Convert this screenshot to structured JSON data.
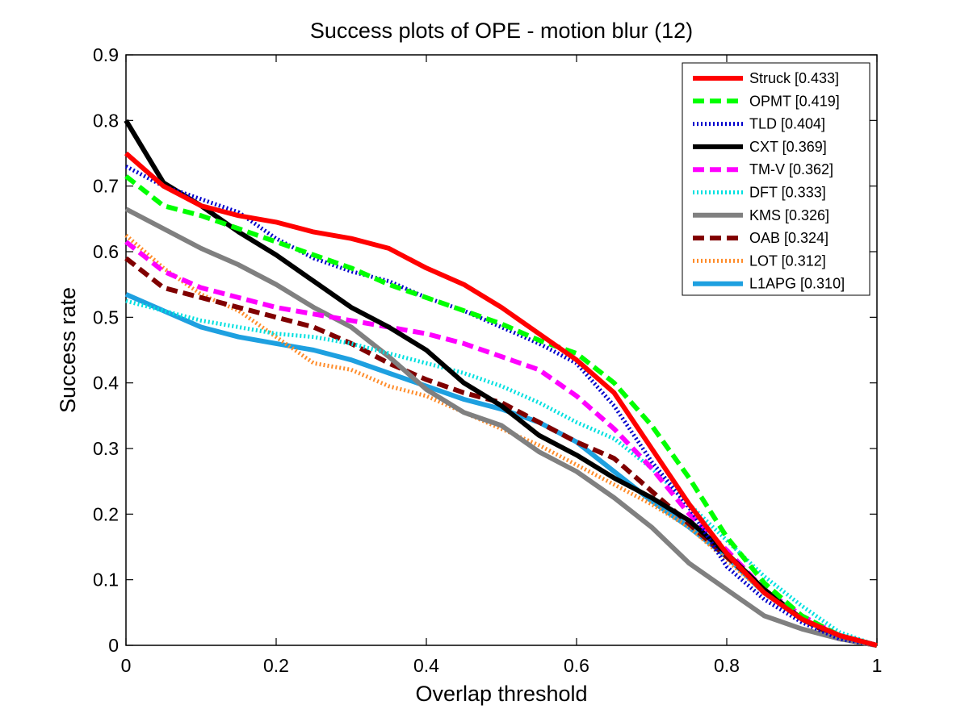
{
  "chart_data": {
    "type": "line",
    "title": "Success plots of OPE - motion blur (12)",
    "xlabel": "Overlap threshold",
    "ylabel": "Success rate",
    "xlim": [
      0,
      1
    ],
    "ylim": [
      0,
      0.9
    ],
    "xticks": [
      0,
      0.2,
      0.4,
      0.6,
      0.8,
      1
    ],
    "xtick_labels": [
      "0",
      "0.2",
      "0.4",
      "0.6",
      "0.8",
      "1"
    ],
    "yticks": [
      0,
      0.1,
      0.2,
      0.3,
      0.4,
      0.5,
      0.6,
      0.7,
      0.8,
      0.9
    ],
    "ytick_labels": [
      "0",
      "0.1",
      "0.2",
      "0.3",
      "0.4",
      "0.5",
      "0.6",
      "0.7",
      "0.8",
      "0.9"
    ],
    "grid": false,
    "legend_position": "top-right",
    "x": [
      0,
      0.05,
      0.1,
      0.15,
      0.2,
      0.25,
      0.3,
      0.35,
      0.4,
      0.45,
      0.5,
      0.55,
      0.6,
      0.65,
      0.7,
      0.75,
      0.8,
      0.85,
      0.9,
      0.95,
      1
    ],
    "series": [
      {
        "name": "Struck [0.433]",
        "color": "#ff0000",
        "style": "solid",
        "width": 6,
        "values": [
          0.75,
          0.7,
          0.67,
          0.655,
          0.645,
          0.63,
          0.62,
          0.605,
          0.575,
          0.55,
          0.515,
          0.475,
          0.435,
          0.385,
          0.3,
          0.215,
          0.14,
          0.08,
          0.04,
          0.015,
          0.0
        ]
      },
      {
        "name": "OPMT [0.419]",
        "color": "#00ff00",
        "style": "dashed",
        "width": 6,
        "values": [
          0.715,
          0.67,
          0.655,
          0.635,
          0.615,
          0.595,
          0.575,
          0.55,
          0.53,
          0.51,
          0.49,
          0.465,
          0.445,
          0.4,
          0.335,
          0.255,
          0.165,
          0.095,
          0.045,
          0.015,
          0.0
        ]
      },
      {
        "name": "TLD [0.404]",
        "color": "#0000cc",
        "style": "dotted",
        "width": 5,
        "values": [
          0.73,
          0.7,
          0.68,
          0.66,
          0.62,
          0.59,
          0.57,
          0.555,
          0.53,
          0.51,
          0.485,
          0.46,
          0.43,
          0.365,
          0.28,
          0.21,
          0.12,
          0.07,
          0.035,
          0.01,
          0.0
        ]
      },
      {
        "name": "CXT [0.369]",
        "color": "#000000",
        "style": "solid",
        "width": 6,
        "values": [
          0.8,
          0.705,
          0.67,
          0.63,
          0.595,
          0.555,
          0.515,
          0.485,
          0.45,
          0.4,
          0.365,
          0.32,
          0.29,
          0.255,
          0.225,
          0.19,
          0.14,
          0.085,
          0.04,
          0.015,
          0.0
        ]
      },
      {
        "name": "TM-V [0.362]",
        "color": "#ff00ff",
        "style": "dashed",
        "width": 6,
        "values": [
          0.615,
          0.57,
          0.545,
          0.53,
          0.515,
          0.505,
          0.495,
          0.485,
          0.475,
          0.46,
          0.44,
          0.42,
          0.38,
          0.33,
          0.27,
          0.2,
          0.145,
          0.085,
          0.045,
          0.015,
          0.0
        ]
      },
      {
        "name": "DFT [0.333]",
        "color": "#00e0e0",
        "style": "dotted",
        "width": 5,
        "values": [
          0.525,
          0.51,
          0.495,
          0.485,
          0.475,
          0.47,
          0.46,
          0.445,
          0.43,
          0.415,
          0.395,
          0.37,
          0.34,
          0.315,
          0.27,
          0.215,
          0.16,
          0.105,
          0.06,
          0.02,
          0.0
        ]
      },
      {
        "name": "KMS [0.326]",
        "color": "#808080",
        "style": "solid",
        "width": 6,
        "values": [
          0.665,
          0.635,
          0.605,
          0.58,
          0.55,
          0.515,
          0.485,
          0.44,
          0.39,
          0.355,
          0.335,
          0.295,
          0.265,
          0.225,
          0.18,
          0.125,
          0.085,
          0.045,
          0.025,
          0.01,
          0.0
        ]
      },
      {
        "name": "OAB [0.324]",
        "color": "#800000",
        "style": "dashed",
        "width": 6,
        "values": [
          0.59,
          0.545,
          0.53,
          0.515,
          0.5,
          0.485,
          0.46,
          0.43,
          0.405,
          0.385,
          0.37,
          0.34,
          0.31,
          0.285,
          0.235,
          0.185,
          0.135,
          0.085,
          0.04,
          0.01,
          0.0
        ]
      },
      {
        "name": "LOT [0.312]",
        "color": "#ff8c2a",
        "style": "dotted",
        "width": 5,
        "values": [
          0.625,
          0.575,
          0.535,
          0.51,
          0.47,
          0.43,
          0.42,
          0.395,
          0.38,
          0.355,
          0.33,
          0.305,
          0.275,
          0.245,
          0.215,
          0.18,
          0.13,
          0.08,
          0.04,
          0.01,
          0.0
        ]
      },
      {
        "name": "L1APG [0.310]",
        "color": "#1ea0e0",
        "style": "solid",
        "width": 6,
        "values": [
          0.535,
          0.51,
          0.485,
          0.47,
          0.46,
          0.45,
          0.435,
          0.415,
          0.395,
          0.375,
          0.36,
          0.34,
          0.31,
          0.265,
          0.22,
          0.18,
          0.135,
          0.08,
          0.04,
          0.015,
          0.0
        ]
      }
    ]
  }
}
